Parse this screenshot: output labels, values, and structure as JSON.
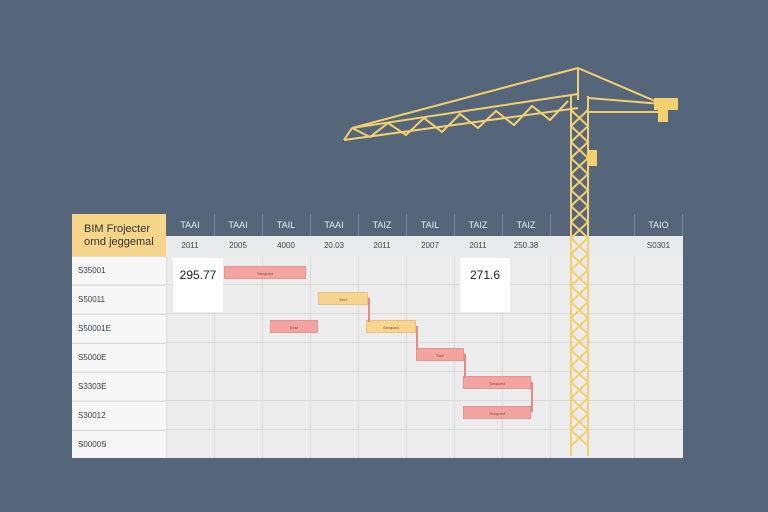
{
  "colors": {
    "background": "#55657a",
    "title_fill": "#f5d58a",
    "bar_red": "#f4a3a0",
    "bar_yellow": "#f7d58e",
    "crane": "#f3d06e"
  },
  "chart": {
    "title_line1": "BIM Frojecter",
    "title_line2": "ornd jeggemal",
    "header_top": [
      "TAAI",
      "TAAI",
      "TAIL",
      "TAAI",
      "TAIZ",
      "TAIL",
      "TAIZ",
      "TAIZ",
      "",
      "",
      "TAIO"
    ],
    "header_bottom": [
      "2011",
      "2005",
      "4000",
      "20.03",
      "2011",
      "2007",
      "2011",
      "250.38",
      "",
      "",
      "S0301"
    ],
    "rows": [
      "S35001",
      "S50011",
      "S50001E",
      "S5000E",
      "S3303E",
      "S30012",
      "S0000S"
    ],
    "values": [
      "295.77",
      "271.6"
    ],
    "bars": [
      {
        "label": "Secqued",
        "color": "red"
      },
      {
        "label": "Secl",
        "color": "yellow"
      },
      {
        "label": "Exst",
        "color": "red"
      },
      {
        "label": "Secqued",
        "color": "yellow"
      },
      {
        "label": "Sacl",
        "color": "red"
      },
      {
        "label": "Secqued",
        "color": "red"
      },
      {
        "label": "Secqued",
        "color": "red"
      }
    ]
  },
  "illustration": {
    "crane_icon": "tower-crane"
  }
}
